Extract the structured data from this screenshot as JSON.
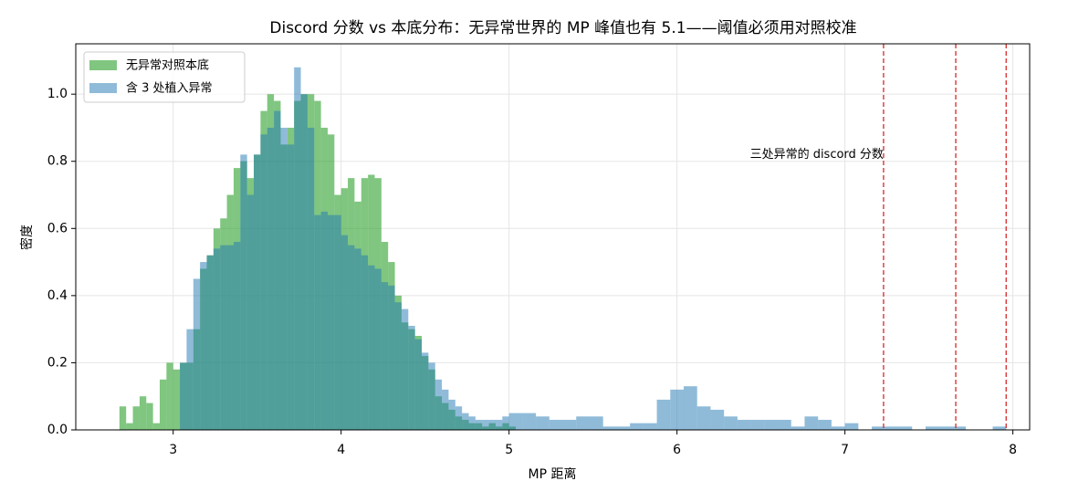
{
  "chart_data": {
    "type": "histogram",
    "title": "Discord 分数 vs 本底分布：无异常世界的 MP 峰值也有 5.1——阈值必须用对照校准",
    "xlabel": "MP 距离",
    "ylabel": "密度",
    "xlim": [
      2.42,
      8.1
    ],
    "ylim": [
      0,
      1.15
    ],
    "xticks": [
      3,
      4,
      5,
      6,
      7,
      8
    ],
    "yticks": [
      {
        "value": 0,
        "label": "0.0"
      },
      0.2,
      0.4,
      0.6,
      0.8,
      {
        "value": 1,
        "label": "1.0"
      }
    ],
    "grid": true,
    "legend": "upper left",
    "series": [
      {
        "name": "无异常对照本底",
        "color": "#2ca02c",
        "bins": [
          2.68,
          2.72,
          2.76,
          2.8,
          2.84,
          2.88,
          2.92,
          2.96,
          3.0,
          3.04,
          3.08,
          3.12,
          3.16,
          3.2,
          3.24,
          3.28,
          3.32,
          3.36,
          3.4,
          3.44,
          3.48,
          3.52,
          3.56,
          3.6,
          3.64,
          3.68,
          3.72,
          3.76,
          3.8,
          3.84,
          3.88,
          3.92,
          3.96,
          4.0,
          4.04,
          4.08,
          4.12,
          4.16,
          4.2,
          4.24,
          4.28,
          4.32,
          4.36,
          4.4,
          4.44,
          4.48,
          4.52,
          4.56,
          4.6,
          4.64,
          4.68,
          4.72,
          4.76,
          4.8,
          4.84,
          4.88,
          4.92,
          4.96,
          5.0,
          5.04
        ],
        "values": [
          0.07,
          0.02,
          0.07,
          0.1,
          0.08,
          0.02,
          0.15,
          0.2,
          0.18,
          0.2,
          0.2,
          0.3,
          0.48,
          0.52,
          0.6,
          0.63,
          0.7,
          0.78,
          0.8,
          0.75,
          0.82,
          0.95,
          1.0,
          0.98,
          0.85,
          0.9,
          0.98,
          1.0,
          1.0,
          0.98,
          0.9,
          0.88,
          0.7,
          0.72,
          0.75,
          0.68,
          0.75,
          0.76,
          0.75,
          0.56,
          0.5,
          0.4,
          0.32,
          0.3,
          0.28,
          0.22,
          0.18,
          0.1,
          0.08,
          0.06,
          0.04,
          0.03,
          0.02,
          0.02,
          0.01,
          0.02,
          0.01,
          0.02,
          0.01
        ]
      },
      {
        "name": "含 3 处植入异常",
        "color": "#1f77b4",
        "bins": [
          3.04,
          3.08,
          3.12,
          3.16,
          3.2,
          3.24,
          3.28,
          3.32,
          3.36,
          3.4,
          3.44,
          3.48,
          3.52,
          3.56,
          3.6,
          3.64,
          3.68,
          3.72,
          3.76,
          3.8,
          3.84,
          3.88,
          3.92,
          3.96,
          4.0,
          4.04,
          4.08,
          4.12,
          4.16,
          4.2,
          4.24,
          4.28,
          4.32,
          4.36,
          4.4,
          4.44,
          4.48,
          4.52,
          4.56,
          4.6,
          4.64,
          4.68,
          4.72,
          4.76,
          4.8,
          4.84,
          4.88,
          4.92,
          4.96,
          5.0,
          5.08,
          5.16,
          5.24,
          5.32,
          5.4,
          5.48,
          5.56,
          5.64,
          5.72,
          5.8,
          5.88,
          5.96,
          6.04,
          6.12,
          6.2,
          6.28,
          6.36,
          6.44,
          6.52,
          6.6,
          6.68,
          6.76,
          6.84,
          6.92,
          7.0,
          7.08,
          7.16,
          7.24,
          7.32,
          7.4,
          7.48,
          7.56,
          7.64,
          7.72,
          7.8,
          7.88,
          7.96
        ],
        "values": [
          0.2,
          0.3,
          0.45,
          0.5,
          0.52,
          0.54,
          0.55,
          0.55,
          0.56,
          0.82,
          0.7,
          0.82,
          0.88,
          0.9,
          0.95,
          0.9,
          0.85,
          1.08,
          1.0,
          0.9,
          0.64,
          0.65,
          0.64,
          0.64,
          0.58,
          0.55,
          0.54,
          0.52,
          0.49,
          0.48,
          0.44,
          0.43,
          0.38,
          0.36,
          0.31,
          0.27,
          0.23,
          0.2,
          0.15,
          0.12,
          0.09,
          0.07,
          0.05,
          0.04,
          0.03,
          0.03,
          0.03,
          0.03,
          0.04,
          0.05,
          0.05,
          0.04,
          0.03,
          0.03,
          0.04,
          0.04,
          0.01,
          0.01,
          0.02,
          0.02,
          0.09,
          0.12,
          0.13,
          0.07,
          0.06,
          0.04,
          0.03,
          0.03,
          0.03,
          0.03,
          0.01,
          0.04,
          0.03,
          0.01,
          0.02,
          0.0,
          0.01,
          0.01,
          0.01,
          0.0,
          0.01,
          0.01,
          0.01,
          0.0,
          0.0,
          0.01
        ]
      }
    ],
    "vlines": [
      7.23,
      7.66,
      7.96
    ],
    "vline_color": "#d62728",
    "annotation": "三处异常的 discord 分数"
  }
}
